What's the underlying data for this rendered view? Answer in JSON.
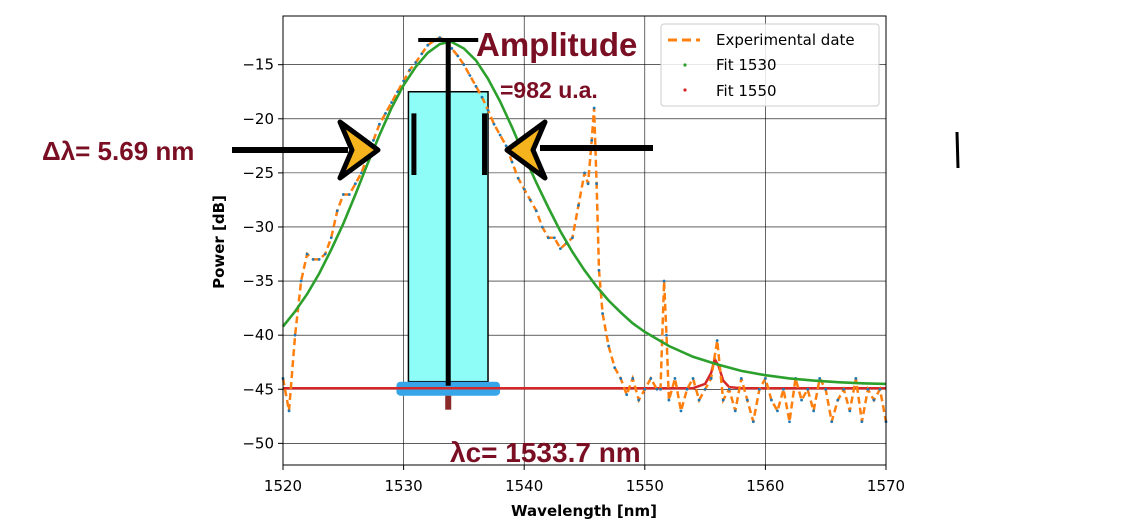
{
  "chart_data": {
    "type": "line",
    "xlabel": "Wavelength [nm]",
    "ylabel": "Power [dB]",
    "xlim": [
      1520,
      1570
    ],
    "ylim": [
      -52,
      -10.5
    ],
    "xticks": [
      1520,
      1530,
      1540,
      1550,
      1560,
      1570
    ],
    "yticks": [
      -15,
      -20,
      -25,
      -30,
      -35,
      -40,
      -45,
      -50
    ],
    "grid": true,
    "legend_position": "top-right",
    "legend": [
      "Experimental date",
      "Fit 1530",
      "Fit 1550"
    ],
    "colors": {
      "experimental": "#ff7f0e",
      "experimental_markers": "#1f77b4",
      "fit1530": "#2ca02c",
      "fit1550": "#d62728",
      "annotation": "#7a0f24",
      "bar_fill": "#8ffdf7",
      "arrow_fill": "#f5b41e"
    },
    "series": [
      {
        "name": "Experimental date",
        "style": "dashed",
        "x": [
          1520,
          1520.5,
          1521,
          1521.5,
          1522,
          1522.5,
          1523,
          1523.5,
          1524,
          1524.5,
          1525,
          1525.5,
          1526,
          1526.5,
          1527,
          1527.5,
          1528,
          1528.5,
          1529,
          1529.5,
          1530,
          1530.5,
          1531,
          1531.5,
          1532,
          1532.5,
          1533,
          1533.5,
          1534,
          1534.5,
          1535,
          1535.5,
          1536,
          1536.5,
          1537,
          1537.5,
          1538,
          1538.5,
          1539,
          1539.5,
          1540,
          1540.5,
          1541,
          1541.5,
          1542,
          1542.5,
          1543,
          1543.5,
          1544,
          1544.5,
          1545,
          1545.3,
          1545.6,
          1545.8,
          1546.0,
          1546.2,
          1546.5,
          1547,
          1547.5,
          1548,
          1548.5,
          1549,
          1549.5,
          1550,
          1550.5,
          1551,
          1551.3,
          1551.6,
          1551.8,
          1552,
          1552.5,
          1553,
          1553.5,
          1554,
          1554.5,
          1555,
          1555.5,
          1556.0,
          1556.5,
          1557,
          1557.5,
          1558,
          1558.5,
          1559,
          1559.5,
          1560,
          1560.5,
          1561,
          1561.5,
          1562,
          1562.5,
          1563,
          1563.5,
          1564,
          1564.5,
          1565,
          1565.5,
          1566,
          1566.5,
          1567,
          1567.5,
          1568,
          1568.5,
          1569,
          1569.5,
          1570
        ],
        "y": [
          -44,
          -47,
          -40,
          -35,
          -32.5,
          -33,
          -33,
          -32.5,
          -31,
          -28.5,
          -27,
          -27,
          -26,
          -25,
          -23.5,
          -22,
          -20.5,
          -19.5,
          -18.5,
          -17.5,
          -16.5,
          -15.5,
          -14.8,
          -14,
          -13.2,
          -12.8,
          -12.5,
          -12.8,
          -13.5,
          -14.2,
          -15,
          -16,
          -17,
          -18,
          -19.2,
          -20.5,
          -21.5,
          -22.5,
          -24,
          -25.5,
          -26.5,
          -27.5,
          -28.5,
          -30,
          -31,
          -31,
          -32,
          -31.5,
          -31,
          -28,
          -25,
          -26,
          -22,
          -19,
          -26,
          -34,
          -38,
          -41,
          -43,
          -44,
          -45.5,
          -44,
          -46,
          -45,
          -44,
          -45,
          -45,
          -35,
          -40,
          -46,
          -44,
          -47,
          -45,
          -44,
          -46,
          -45,
          -44,
          -40.5,
          -46,
          -45,
          -47,
          -44,
          -46,
          -48,
          -45,
          -44,
          -46,
          -47,
          -45,
          -48,
          -44,
          -46,
          -45,
          -47,
          -44,
          -45,
          -48,
          -46,
          -45,
          -47,
          -44,
          -48,
          -45,
          -46,
          -45,
          -48
        ]
      },
      {
        "name": "Fit 1530",
        "style": "dotted",
        "center": 1533.7,
        "fwhm": 5.69,
        "x": [
          1520,
          1521,
          1522,
          1523,
          1524,
          1525,
          1526,
          1527,
          1528,
          1529,
          1530,
          1531,
          1532,
          1533,
          1533.7,
          1534,
          1535,
          1536,
          1537,
          1538,
          1539,
          1540,
          1541,
          1542,
          1543,
          1544,
          1545,
          1546,
          1547,
          1548,
          1549,
          1550,
          1552,
          1554,
          1556,
          1558,
          1560,
          1562,
          1564,
          1566,
          1568,
          1570
        ],
        "y": [
          -39.2,
          -37.8,
          -36.2,
          -34.3,
          -32.1,
          -29.7,
          -27.0,
          -24.2,
          -21.5,
          -19.0,
          -16.9,
          -15.2,
          -13.9,
          -13.1,
          -12.9,
          -12.9,
          -13.5,
          -14.6,
          -16.3,
          -18.4,
          -20.8,
          -23.4,
          -25.9,
          -28.2,
          -30.4,
          -32.3,
          -34.0,
          -35.5,
          -36.8,
          -37.9,
          -38.9,
          -39.7,
          -41.0,
          -42.0,
          -42.7,
          -43.3,
          -43.7,
          -44.0,
          -44.2,
          -44.35,
          -44.45,
          -44.5
        ]
      },
      {
        "name": "Fit 1550",
        "style": "dotted",
        "x": [
          1520,
          1554,
          1555,
          1555.5,
          1555.8,
          1556.1,
          1556.5,
          1557,
          1558,
          1570
        ],
        "y": [
          -44.9,
          -44.9,
          -44.5,
          -43.5,
          -42.2,
          -42.8,
          -44.2,
          -44.8,
          -44.9,
          -44.9
        ]
      }
    ],
    "annotations": {
      "amplitude_title": "Amplitude",
      "amplitude_value": "=982 u.a.",
      "width": "Δλ= 5.69 nm",
      "center": "λc= 1533.7 nm",
      "bar": {
        "x_start": 1530.4,
        "x_end": 1537,
        "y_top": -17.5,
        "y_bottom": -44.3
      }
    }
  }
}
